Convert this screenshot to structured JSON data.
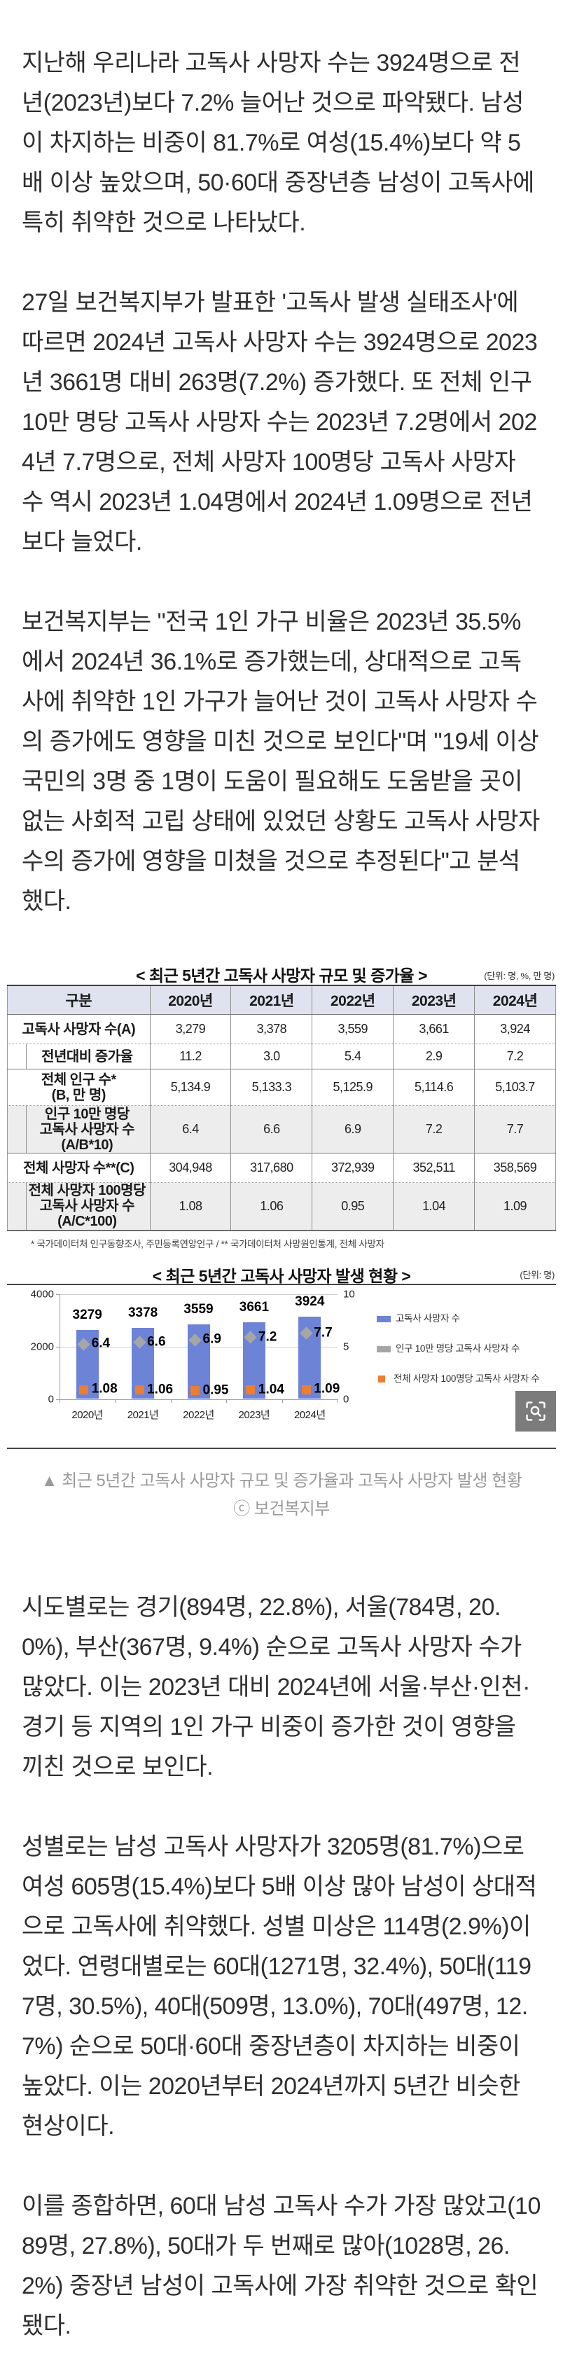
{
  "article": {
    "paragraphs": [
      "지난해 우리나라 고독사 사망자 수는 3924명으로 전년(2023년)보다 7.2% 늘어난 것으로 파악됐다. 남성이 차지하는 비중이 81.7%로 여성(15.4%)보다 약 5배 이상 높았으며, 50·60대 중장년층 남성이 고독사에 특히 취약한 것으로 나타났다.",
      "27일 보건복지부가 발표한 '고독사 발생 실태조사'에 따르면 2024년 고독사 사망자 수는 3924명으로 2023년 3661명 대비 263명(7.2%) 증가했다. 또 전체 인구 10만 명당 고독사 사망자 수는 2023년 7.2명에서 2024년 7.7명으로, 전체 사망자 100명당 고독사 사망자 수 역시 2023년 1.04명에서 2024년 1.09명으로 전년보다 늘었다.",
      "보건복지부는 \"전국 1인 가구 비율은 2023년 35.5%에서 2024년 36.1%로 증가했는데, 상대적으로 고독사에 취약한 1인 가구가 늘어난 것이 고독사 사망자 수의 증가에도 영향을 미친 것으로 보인다\"며 \"19세 이상 국민의 3명 중 1명이 도움이 필요해도 도움받을 곳이 없는 사회적 고립 상태에 있었던 상황도 고독사 사망자 수의 증가에 영향을 미쳤을 것으로 추정된다\"고 분석했다.",
      "시도별로는 경기(894명, 22.8%), 서울(784명, 20.0%), 부산(367명, 9.4%) 순으로 고독사 사망자 수가 많았다. 이는 2023년 대비 2024년에 서울·부산·인천·경기 등 지역의 1인 가구 비중이 증가한 것이 영향을 끼친 것으로 보인다.",
      "성별로는 남성 고독사 사망자가 3205명(81.7%)으로 여성 605명(15.4%)보다 5배 이상 많아 남성이 상대적으로 고독사에 취약했다. 성별 미상은 114명(2.9%)이었다. 연령대별로는 60대(1271명, 32.4%), 50대(1197명, 30.5%), 40대(509명, 13.0%), 70대(497명, 12.7%) 순으로 50대·60대 중장년층이 차지하는 비중이 높았다. 이는 2020년부터 2024년까지 5년간 비슷한 현상이다.",
      "이를 종합하면, 60대 남성 고독사 수가 가장 많았고(1089명, 27.8%), 50대가 두 번째로 많아(1028명, 26.2%) 중장년 남성이 고독사에 가장 취약한 것으로 확인됐다."
    ]
  },
  "figure": {
    "table": {
      "title": "< 최근 5년간 고독사 사망자 규모 및 증가율 >",
      "unit_note": "(단위: 명, %, 만 명)",
      "columns": [
        "구분",
        "2020년",
        "2021년",
        "2022년",
        "2023년",
        "2024년"
      ],
      "rows": [
        {
          "label": "고독사 사망자 수(A)",
          "indent": false,
          "shaded": false,
          "size": "single",
          "values": [
            "3,279",
            "3,378",
            "3,559",
            "3,661",
            "3,924"
          ]
        },
        {
          "label": "전년대비 증가율",
          "indent": true,
          "shaded": false,
          "size": "short",
          "values": [
            "11.2",
            "3.0",
            "5.4",
            "2.9",
            "7.2"
          ]
        },
        {
          "label": "전체 인구 수*\n(B, 만 명)",
          "indent": false,
          "shaded": false,
          "size": "two",
          "values": [
            "5,134.9",
            "5,133.3",
            "5,125.9",
            "5,114.6",
            "5,103.7"
          ]
        },
        {
          "label": "인구 10만 명당\n고독사 사망자 수\n(A/B*10)",
          "indent": true,
          "shaded": true,
          "size": "three",
          "values": [
            "6.4",
            "6.6",
            "6.9",
            "7.2",
            "7.7"
          ]
        },
        {
          "label": "전체 사망자 수**(C)",
          "indent": false,
          "shaded": false,
          "size": "single",
          "values": [
            "304,948",
            "317,680",
            "372,939",
            "352,511",
            "358,569"
          ]
        },
        {
          "label": "전체 사망자 100명당\n고독사 사망자 수\n(A/C*100)",
          "indent": true,
          "shaded": true,
          "size": "three",
          "values": [
            "1.08",
            "1.06",
            "0.95",
            "1.04",
            "1.09"
          ]
        }
      ],
      "footnote": "* 국가데이터처 인구동향조사, 주민등록연앙인구   /   ** 국가데이터처 사망원인통계, 전체 사망자"
    },
    "caption": "▲ 최근 5년간 고독사 사망자 규모 및 증가율과 고독사 사망자 발생 현황",
    "credit": "ⓒ 보건복지부",
    "zoom_button_icon": "magnifier-brackets"
  },
  "chart_data": {
    "type": "bar",
    "title": "< 최근 5년간 고독사 사망자 발생 현황 >",
    "unit_note": "(단위: 명)",
    "categories": [
      "2020년",
      "2021년",
      "2022년",
      "2023년",
      "2024년"
    ],
    "series": [
      {
        "name": "고독사 사망자 수",
        "type": "bar",
        "color": "#6d83d6",
        "axis": "left",
        "values": [
          3279,
          3378,
          3559,
          3661,
          3924
        ],
        "labels": [
          "3279",
          "3378",
          "3559",
          "3661",
          "3924"
        ]
      },
      {
        "name": "인구 10만 명당 고독사 사망자 수",
        "type": "point-diamond",
        "color": "#a6a6a6",
        "axis": "right",
        "values": [
          6.4,
          6.6,
          6.9,
          7.2,
          7.7
        ],
        "labels": [
          "6.4",
          "6.6",
          "6.9",
          "7.2",
          "7.7"
        ]
      },
      {
        "name": "전체 사망자 100명당 고독사 사망자 수",
        "type": "point-square",
        "color": "#ed7d31",
        "axis": "right",
        "values": [
          1.08,
          1.06,
          0.95,
          1.04,
          1.09
        ],
        "labels": [
          "1.08",
          "1.06",
          "0.95",
          "1.04",
          "1.09"
        ]
      }
    ],
    "left_axis_ticks": [
      "0",
      "2000",
      "4000"
    ],
    "right_axis_ticks": [
      "0",
      "5",
      "10"
    ],
    "left_ylim": [
      0,
      4000
    ],
    "right_ylim": [
      0,
      10
    ],
    "grid": true,
    "legend_position": "right"
  }
}
